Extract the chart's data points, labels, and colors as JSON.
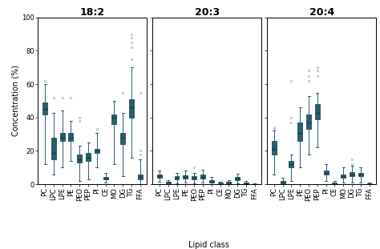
{
  "panels": [
    "18:2",
    "20:3",
    "20:4"
  ],
  "categories": [
    "PC",
    "LPC",
    "LPE",
    "PE",
    "PEO",
    "PEP",
    "PI",
    "CE",
    "MO",
    "DG",
    "TG",
    "FFA"
  ],
  "ylabel": "Concentration (%)",
  "xlabel": "Lipid class",
  "ylim": [
    0,
    100
  ],
  "yticks": [
    0,
    20,
    40,
    60,
    80,
    100
  ],
  "box_facecolor": "#aadce0",
  "box_edgecolor": "#2a5e6a",
  "median_color": "#1a3a44",
  "flier_color": "#888888",
  "title_fontsize": 9,
  "label_fontsize": 7,
  "tick_fontsize": 6,
  "panel_18_2": {
    "PC": {
      "q1": 42,
      "median": 45,
      "q3": 49,
      "whislo": 12,
      "whishi": 60,
      "fliers_high": [
        62
      ],
      "fliers_low": []
    },
    "LPC": {
      "q1": 15,
      "median": 19,
      "q3": 28,
      "whislo": 6,
      "whishi": 43,
      "fliers_high": [
        52
      ],
      "fliers_low": []
    },
    "LPE": {
      "q1": 26,
      "median": 28,
      "q3": 31,
      "whislo": 10,
      "whishi": 44,
      "fliers_high": [
        52
      ],
      "fliers_low": []
    },
    "PE": {
      "q1": 26,
      "median": 28,
      "q3": 31,
      "whislo": 14,
      "whishi": 38,
      "fliers_high": [
        52
      ],
      "fliers_low": []
    },
    "PEO": {
      "q1": 13,
      "median": 15,
      "q3": 18,
      "whislo": 2,
      "whishi": 23,
      "fliers_high": [
        38,
        40
      ],
      "fliers_low": []
    },
    "PEP": {
      "q1": 14,
      "median": 16,
      "q3": 19,
      "whislo": 3,
      "whishi": 25,
      "fliers_high": [],
      "fliers_low": []
    },
    "PI": {
      "q1": 19,
      "median": 20,
      "q3": 21,
      "whislo": 10,
      "whishi": 31,
      "fliers_high": [
        33
      ],
      "fliers_low": []
    },
    "CE": {
      "q1": 3,
      "median": 3.5,
      "q3": 4.5,
      "whislo": 1,
      "whishi": 7,
      "fliers_high": [],
      "fliers_low": []
    },
    "MO": {
      "q1": 36,
      "median": 40,
      "q3": 42,
      "whislo": 12,
      "whishi": 50,
      "fliers_high": [],
      "fliers_low": []
    },
    "DG": {
      "q1": 24,
      "median": 28,
      "q3": 31,
      "whislo": 5,
      "whishi": 43,
      "fliers_high": [
        55
      ],
      "fliers_low": []
    },
    "TG": {
      "q1": 40,
      "median": 46,
      "q3": 51,
      "whislo": 16,
      "whishi": 70,
      "fliers_high": [
        75,
        82,
        85,
        88,
        90
      ],
      "fliers_low": []
    },
    "FFA": {
      "q1": 3,
      "median": 4.5,
      "q3": 6,
      "whislo": 0,
      "whishi": 15,
      "fliers_high": [
        18,
        20,
        55
      ],
      "fliers_low": []
    }
  },
  "panel_20_3": {
    "PC": {
      "q1": 4.0,
      "median": 5.0,
      "q3": 6.0,
      "whislo": 1.5,
      "whishi": 8.0,
      "fliers_high": [],
      "fliers_low": []
    },
    "LPC": {
      "q1": 0.5,
      "median": 1.0,
      "q3": 1.5,
      "whislo": 0.0,
      "whishi": 2.5,
      "fliers_high": [],
      "fliers_low": []
    },
    "LPE": {
      "q1": 3.0,
      "median": 4.0,
      "q3": 5.0,
      "whislo": 0.5,
      "whishi": 7.0,
      "fliers_high": [],
      "fliers_low": []
    },
    "PE": {
      "q1": 3.5,
      "median": 4.5,
      "q3": 5.5,
      "whislo": 1.0,
      "whishi": 8.0,
      "fliers_high": [],
      "fliers_low": []
    },
    "PEO": {
      "q1": 3.0,
      "median": 4.0,
      "q3": 5.0,
      "whislo": 0.5,
      "whishi": 7.0,
      "fliers_high": [
        10
      ],
      "fliers_low": []
    },
    "PEP": {
      "q1": 3.5,
      "median": 4.5,
      "q3": 6.0,
      "whislo": 1.0,
      "whishi": 8.5,
      "fliers_high": [],
      "fliers_low": []
    },
    "PI": {
      "q1": 1.0,
      "median": 1.5,
      "q3": 2.5,
      "whislo": 0.0,
      "whishi": 4.5,
      "fliers_high": [],
      "fliers_low": []
    },
    "CE": {
      "q1": 0.0,
      "median": 0.3,
      "q3": 0.8,
      "whislo": 0.0,
      "whishi": 1.5,
      "fliers_high": [],
      "fliers_low": []
    },
    "MO": {
      "q1": 0.5,
      "median": 1.0,
      "q3": 1.5,
      "whislo": 0.0,
      "whishi": 2.5,
      "fliers_high": [],
      "fliers_low": []
    },
    "DG": {
      "q1": 2.5,
      "median": 3.5,
      "q3": 4.5,
      "whislo": 0.5,
      "whishi": 6.5,
      "fliers_high": [],
      "fliers_low": []
    },
    "TG": {
      "q1": 0.2,
      "median": 0.5,
      "q3": 1.0,
      "whislo": 0.0,
      "whishi": 2.0,
      "fliers_high": [],
      "fliers_low": []
    },
    "FFA": {
      "q1": 0.0,
      "median": 0.1,
      "q3": 0.3,
      "whislo": 0.0,
      "whishi": 0.5,
      "fliers_high": [],
      "fliers_low": []
    }
  },
  "panel_20_4": {
    "PC": {
      "q1": 18,
      "median": 21,
      "q3": 26,
      "whislo": 6,
      "whishi": 32,
      "fliers_high": [
        33,
        34
      ],
      "fliers_low": []
    },
    "LPC": {
      "q1": 0.5,
      "median": 1.0,
      "q3": 2.0,
      "whislo": 0.0,
      "whishi": 4.0,
      "fliers_high": [],
      "fliers_low": []
    },
    "LPE": {
      "q1": 10,
      "median": 12,
      "q3": 14,
      "whislo": 2,
      "whishi": 18,
      "fliers_high": [
        37,
        40,
        62
      ],
      "fliers_low": []
    },
    "PE": {
      "q1": 26,
      "median": 31,
      "q3": 37,
      "whislo": 10,
      "whishi": 46,
      "fliers_high": [],
      "fliers_low": []
    },
    "PEO": {
      "q1": 33,
      "median": 37,
      "q3": 42,
      "whislo": 18,
      "whishi": 53,
      "fliers_high": [
        62,
        65,
        68
      ],
      "fliers_low": []
    },
    "PEP": {
      "q1": 39,
      "median": 43,
      "q3": 48,
      "whislo": 22,
      "whishi": 55,
      "fliers_high": [
        65,
        68,
        70
      ],
      "fliers_low": []
    },
    "PI": {
      "q1": 6,
      "median": 7,
      "q3": 8,
      "whislo": 2,
      "whishi": 12,
      "fliers_high": [],
      "fliers_low": []
    },
    "CE": {
      "q1": 0,
      "median": 0.3,
      "q3": 0.8,
      "whislo": 0,
      "whishi": 2,
      "fliers_high": [],
      "fliers_low": []
    },
    "MO": {
      "q1": 4,
      "median": 5,
      "q3": 6,
      "whislo": 1,
      "whishi": 10,
      "fliers_high": [],
      "fliers_low": []
    },
    "DG": {
      "q1": 5,
      "median": 6,
      "q3": 7.5,
      "whislo": 1,
      "whishi": 11,
      "fliers_high": [
        12,
        15
      ],
      "fliers_low": []
    },
    "TG": {
      "q1": 5,
      "median": 6,
      "q3": 7,
      "whislo": 1,
      "whishi": 10,
      "fliers_high": [],
      "fliers_low": []
    },
    "FFA": {
      "q1": 0,
      "median": 0.2,
      "q3": 0.5,
      "whislo": 0,
      "whishi": 1,
      "fliers_high": [],
      "fliers_low": []
    }
  }
}
